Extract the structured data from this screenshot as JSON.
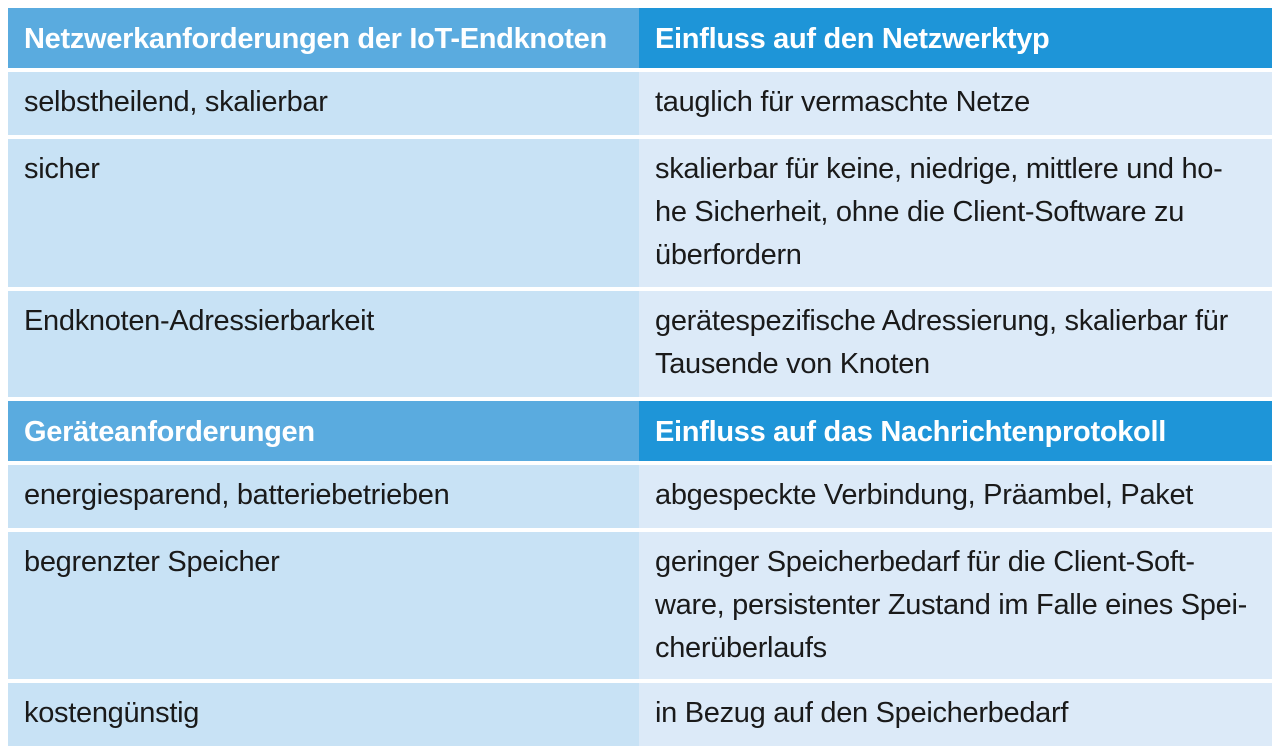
{
  "section1": {
    "header": {
      "col1": "Netzwerkanforderungen der IoT-Endknoten",
      "col2": "Einfluss auf den Netzwerktyp"
    },
    "rows": [
      {
        "requirement": "selbstheilend, skalierbar",
        "influence": "tauglich für vermaschte Netze"
      },
      {
        "requirement": "sicher",
        "influence": "skalierbar für keine, niedrige, mittlere und ho-he Sicherheit, ohne die Client-Software zu überfordern"
      },
      {
        "requirement": "Endknoten-Adressierbarkeit",
        "influence": "gerätespezifische Adressierung, skalierbar für Tausende von Knoten"
      }
    ]
  },
  "section2": {
    "header": {
      "col1": "Geräteanforderungen",
      "col2": "Einfluss auf das Nachrichtenprotokoll"
    },
    "rows": [
      {
        "requirement": "energiesparend, batteriebetrieben",
        "influence": "abgespeckte Verbindung, Präambel, Paket"
      },
      {
        "requirement": "begrenzter Speicher",
        "influence": "geringer Speicherbedarf für die Client-Soft-ware, persistenter Zustand im Falle eines Spei-cherüberlaufs"
      },
      {
        "requirement": "kostengünstig",
        "influence": "in Bezug auf den Speicherbedarf"
      }
    ]
  }
}
